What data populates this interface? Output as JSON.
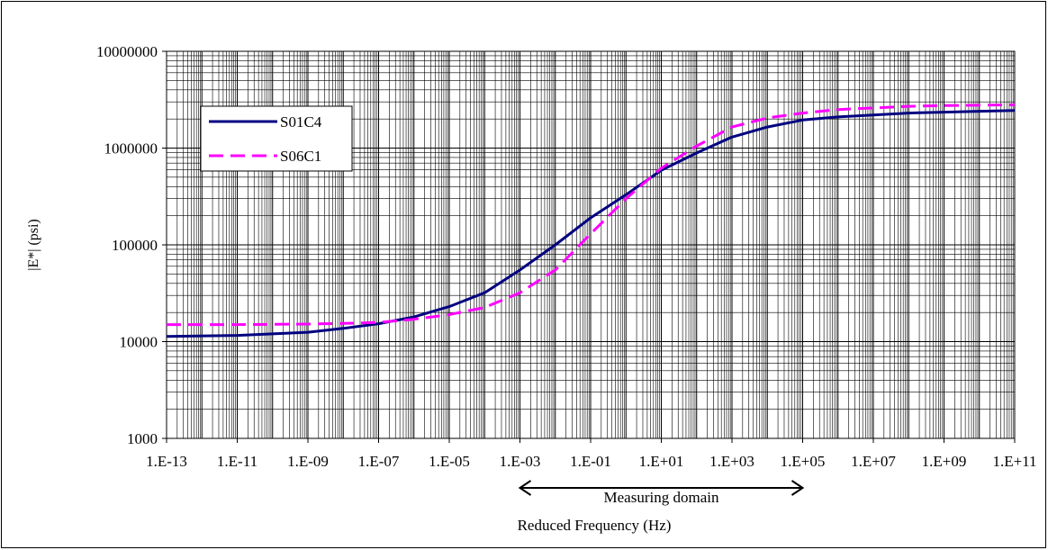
{
  "chart_data": {
    "type": "line",
    "title": "",
    "xlabel": "Reduced Frequency (Hz)",
    "ylabel": "|E*| (psi)",
    "xscale": "log",
    "yscale": "log",
    "xlim": [
      1e-13,
      100000000000.0
    ],
    "ylim": [
      1000,
      10000000
    ],
    "grid": true,
    "legend_position": "top-left",
    "x_tick_labels": [
      "1.E-13",
      "1.E-11",
      "1.E-09",
      "1.E-07",
      "1.E-05",
      "1.E-03",
      "1.E-01",
      "1.E+01",
      "1.E+03",
      "1.E+05",
      "1.E+07",
      "1.E+09",
      "1.E+11"
    ],
    "y_tick_labels": [
      "1000",
      "10000",
      "100000",
      "1000000",
      "10000000"
    ],
    "annotation": {
      "text": "Measuring domain",
      "x_range": [
        0.001,
        100000.0
      ]
    },
    "series": [
      {
        "name": "S01C4",
        "color": "#000080",
        "style": "solid",
        "x": [
          1e-13,
          1e-11,
          1e-09,
          1e-08,
          1e-07,
          1e-06,
          1e-05,
          0.0001,
          0.001,
          0.01,
          0.1,
          1.0,
          10.0,
          100.0,
          1000.0,
          10000.0,
          100000.0,
          1000000.0,
          10000000.0,
          100000000.0,
          1000000000.0,
          10000000000.0,
          100000000000.0
        ],
        "y": [
          11300,
          11600,
          12500,
          13700,
          15300,
          18000,
          23000,
          32000,
          55000,
          100000,
          190000,
          330000,
          590000,
          890000,
          1300000,
          1650000,
          1950000,
          2100000,
          2200000,
          2300000,
          2350000,
          2400000,
          2450000
        ]
      },
      {
        "name": "S06C1",
        "color": "#ff00ff",
        "style": "dashed",
        "x": [
          1e-13,
          1e-11,
          1e-09,
          1e-08,
          1e-07,
          1e-06,
          1e-05,
          0.0001,
          0.001,
          0.01,
          0.1,
          1.0,
          10.0,
          100.0,
          1000.0,
          10000.0,
          100000.0,
          1000000.0,
          10000000.0,
          100000000.0,
          1000000000.0,
          10000000000.0,
          100000000000.0
        ],
        "y": [
          15000,
          15000,
          15200,
          15400,
          15800,
          17000,
          19000,
          22500,
          32000,
          55000,
          130000,
          300000,
          620000,
          1050000,
          1650000,
          2050000,
          2300000,
          2500000,
          2600000,
          2700000,
          2750000,
          2770000,
          2800000
        ]
      }
    ]
  }
}
